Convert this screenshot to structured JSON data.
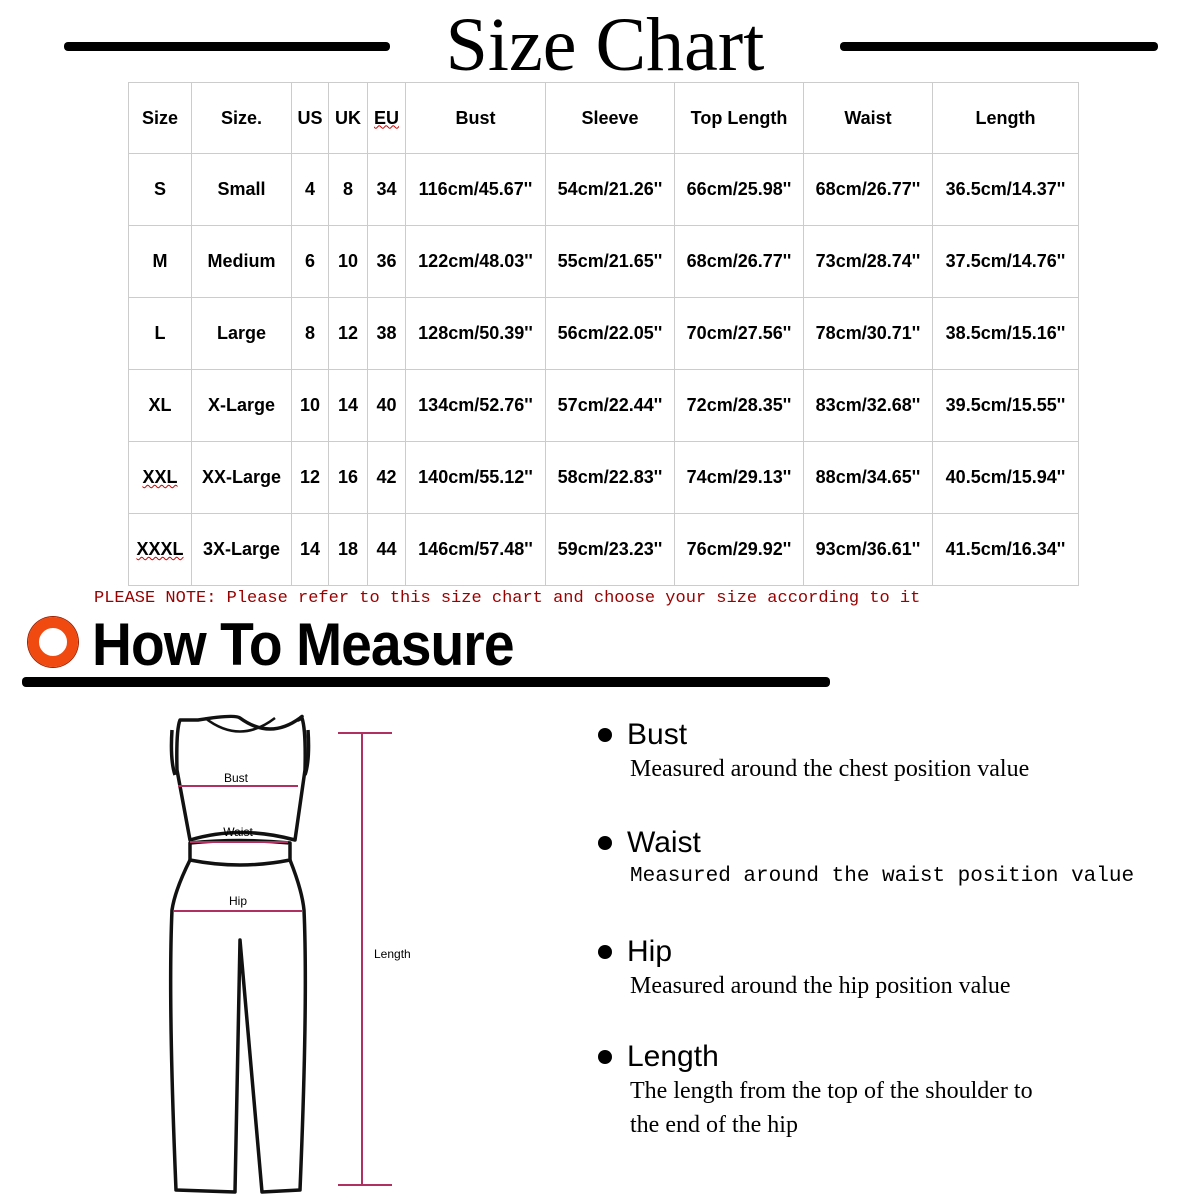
{
  "title": "Size Chart",
  "table": {
    "headers": [
      "Size",
      "Size.",
      "US",
      "UK",
      "EU",
      "Bust",
      "Sleeve",
      "Top Length",
      "Waist",
      "Length"
    ],
    "rows": [
      [
        "S",
        "Small",
        "4",
        "8",
        "34",
        "116cm/45.67''",
        "54cm/21.26''",
        "66cm/25.98''",
        "68cm/26.77''",
        "36.5cm/14.37''"
      ],
      [
        "M",
        "Medium",
        "6",
        "10",
        "36",
        "122cm/48.03''",
        "55cm/21.65''",
        "68cm/26.77''",
        "73cm/28.74''",
        "37.5cm/14.76''"
      ],
      [
        "L",
        "Large",
        "8",
        "12",
        "38",
        "128cm/50.39''",
        "56cm/22.05''",
        "70cm/27.56''",
        "78cm/30.71''",
        "38.5cm/15.16''"
      ],
      [
        "XL",
        "X-Large",
        "10",
        "14",
        "40",
        "134cm/52.76''",
        "57cm/22.44''",
        "72cm/28.35''",
        "83cm/32.68''",
        "39.5cm/15.55''"
      ],
      [
        "XXL",
        "XX-Large",
        "12",
        "16",
        "42",
        "140cm/55.12''",
        "58cm/22.83''",
        "74cm/29.13''",
        "88cm/34.65''",
        "40.5cm/15.94''"
      ],
      [
        "XXXL",
        "3X-Large",
        "14",
        "18",
        "44",
        "146cm/57.48''",
        "59cm/23.23''",
        "76cm/29.92''",
        "93cm/36.61''",
        "41.5cm/16.34''"
      ]
    ]
  },
  "note": "PLEASE NOTE: Please refer to this size chart and choose your size according to it",
  "how_title": "How To Measure",
  "figure_labels": {
    "bust": "Bust",
    "waist": "Waist",
    "hip": "Hip",
    "length": "Length"
  },
  "measures": [
    {
      "name": "Bust",
      "desc": [
        "Measured around the chest position value"
      ]
    },
    {
      "name": "Waist",
      "desc": [
        "Measured around  the waist position value"
      ]
    },
    {
      "name": "Hip",
      "desc": [
        "Measured around the  hip position value"
      ]
    },
    {
      "name": "Length",
      "desc": [
        "The length from the top of the shoulder to",
        "the end of the hip"
      ]
    }
  ],
  "colors": {
    "accent": "#f04a10",
    "note": "#990000",
    "measure_line": "#b03060"
  }
}
